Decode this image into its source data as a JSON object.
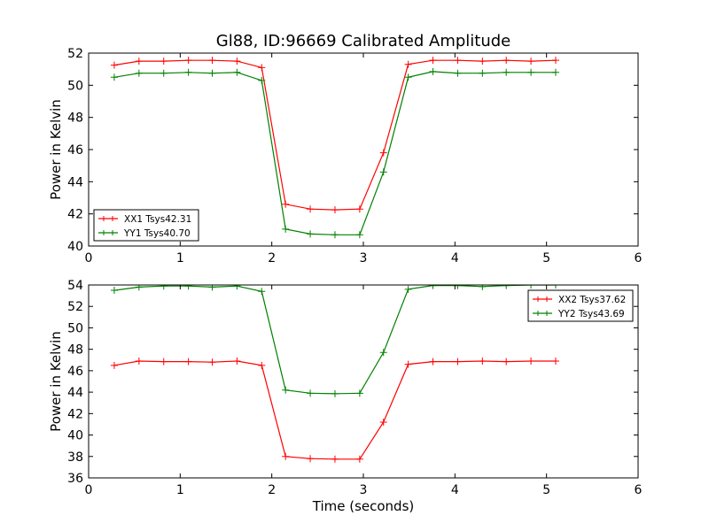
{
  "figure": {
    "title": "Gl88, ID:96669 Calibrated Amplitude"
  },
  "chart_data": [
    {
      "type": "line",
      "title": "Gl88, ID:96669 Calibrated Amplitude",
      "xlabel": "",
      "ylabel": "Power in Kelvin",
      "xlim": [
        0,
        6
      ],
      "ylim": [
        40,
        52
      ],
      "xticks": [
        0,
        1,
        2,
        3,
        4,
        5,
        6
      ],
      "yticks": [
        40,
        42,
        44,
        46,
        48,
        50,
        52
      ],
      "grid": false,
      "legend_position": "lower-left",
      "x": [
        0.28,
        0.55,
        0.82,
        1.09,
        1.35,
        1.62,
        1.89,
        2.15,
        2.42,
        2.69,
        2.96,
        3.22,
        3.49,
        3.76,
        4.03,
        4.3,
        4.56,
        4.83,
        5.1
      ],
      "series": [
        {
          "name": "XX1 Tsys42.31",
          "color": "#ff0000",
          "values": [
            51.25,
            51.5,
            51.5,
            51.55,
            51.55,
            51.5,
            51.1,
            42.6,
            42.3,
            42.25,
            42.3,
            45.8,
            51.3,
            51.55,
            51.55,
            51.5,
            51.55,
            51.5,
            51.55
          ]
        },
        {
          "name": "YY1 Tsys40.70",
          "color": "#008000",
          "values": [
            50.5,
            50.75,
            50.75,
            50.8,
            50.75,
            50.8,
            50.3,
            41.05,
            40.75,
            40.7,
            40.7,
            44.6,
            50.5,
            50.85,
            50.75,
            50.75,
            50.8,
            50.8,
            50.8
          ]
        }
      ]
    },
    {
      "type": "line",
      "title": "",
      "xlabel": "Time (seconds)",
      "ylabel": "Power in Kelvin",
      "xlim": [
        0,
        6
      ],
      "ylim": [
        36,
        54
      ],
      "xticks": [
        0,
        1,
        2,
        3,
        4,
        5,
        6
      ],
      "yticks": [
        36,
        38,
        40,
        42,
        44,
        46,
        48,
        50,
        52,
        54
      ],
      "grid": false,
      "legend_position": "upper-right",
      "x": [
        0.28,
        0.55,
        0.82,
        1.09,
        1.35,
        1.62,
        1.89,
        2.15,
        2.42,
        2.69,
        2.96,
        3.22,
        3.49,
        3.76,
        4.03,
        4.3,
        4.56,
        4.83,
        5.1
      ],
      "series": [
        {
          "name": "XX2 Tsys37.62",
          "color": "#ff0000",
          "values": [
            46.5,
            46.9,
            46.85,
            46.85,
            46.8,
            46.9,
            46.5,
            38.0,
            37.8,
            37.75,
            37.75,
            41.2,
            46.6,
            46.85,
            46.85,
            46.9,
            46.85,
            46.9,
            46.9
          ]
        },
        {
          "name": "YY2 Tsys43.69",
          "color": "#008000",
          "values": [
            53.5,
            53.8,
            53.9,
            53.9,
            53.8,
            53.9,
            53.4,
            44.2,
            43.9,
            43.85,
            43.9,
            47.7,
            53.6,
            53.95,
            53.95,
            53.85,
            53.95,
            54.0,
            54.0
          ]
        }
      ]
    }
  ]
}
